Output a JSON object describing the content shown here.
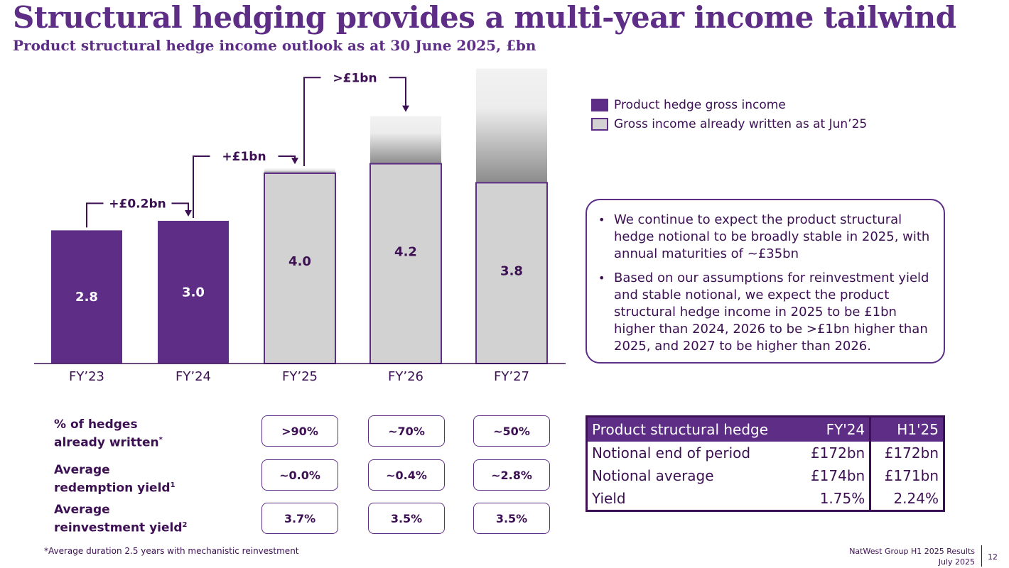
{
  "title": "Structural hedging provides a multi-year income tailwind",
  "subtitle": "Product structural hedge income outlook as at 30 June 2025, £bn",
  "colors": {
    "purple": "#5e2d86",
    "dark": "#3c1053",
    "grey": "#d2d2d2"
  },
  "chart_data": {
    "type": "bar",
    "categories": [
      "FY’23",
      "FY’24",
      "FY’25",
      "FY’26",
      "FY’27"
    ],
    "series": [
      {
        "name": "Product hedge gross income",
        "values": [
          2.8,
          3.0,
          4.0,
          4.2,
          3.8
        ]
      }
    ],
    "bar_styles": [
      "purple",
      "purple",
      "written",
      "written",
      "written"
    ],
    "value_labels": [
      "2.8",
      "3.0",
      "4.0",
      "4.2",
      "3.8"
    ],
    "ylim": [
      0,
      6.3
    ],
    "upside_gradient_top": [
      null,
      null,
      4.1,
      5.2,
      6.2
    ],
    "step_annotations": [
      {
        "from": 0,
        "to": 1,
        "label": "+£0.2bn"
      },
      {
        "from": 1,
        "to": 2,
        "label": "+£1bn"
      },
      {
        "from": 2,
        "to": 3,
        "label": ">£1bn"
      }
    ],
    "legend": [
      "Product hedge gross income",
      "Gross income already written as at Jun’25"
    ]
  },
  "legend": {
    "item1": "Product hedge gross income",
    "item2": "Gross income already written as at Jun’25"
  },
  "commentary": [
    "We continue to expect the product structural hedge notional to be broadly stable in 2025, with annual maturities of ~£35bn",
    "Based on our assumptions for reinvestment yield and stable notional, we expect the product structural hedge income in 2025 to be £1bn higher than 2024, 2026 to be >£1bn higher than 2025, and 2027 to be higher than 2026."
  ],
  "metrics": {
    "rows": [
      {
        "label_line1": "% of hedges",
        "label_line2": "already written",
        "sup": "*",
        "values": [
          ">90%",
          "~70%",
          "~50%"
        ]
      },
      {
        "label_line1": "Average",
        "label_line2": "redemption yield",
        "sup": "1",
        "values": [
          "~0.0%",
          "~0.4%",
          "~2.8%"
        ]
      },
      {
        "label_line1": "Average",
        "label_line2": "reinvestment yield",
        "sup": "2",
        "values": [
          "3.7%",
          "3.5%",
          "3.5%"
        ]
      }
    ]
  },
  "hedge_table": {
    "headers": [
      "Product structural hedge",
      "FY'24",
      "H1'25"
    ],
    "rows": [
      [
        "Notional end of period",
        "£172bn",
        "£172bn"
      ],
      [
        "Notional average",
        "£174bn",
        "£171bn"
      ],
      [
        "Yield",
        "1.75%",
        "2.24%"
      ]
    ]
  },
  "footnote": "*Average duration 2.5 years with mechanistic reinvestment",
  "footer": {
    "line1": "NatWest Group H1 2025 Results",
    "line2": "July 2025",
    "page": "12"
  }
}
